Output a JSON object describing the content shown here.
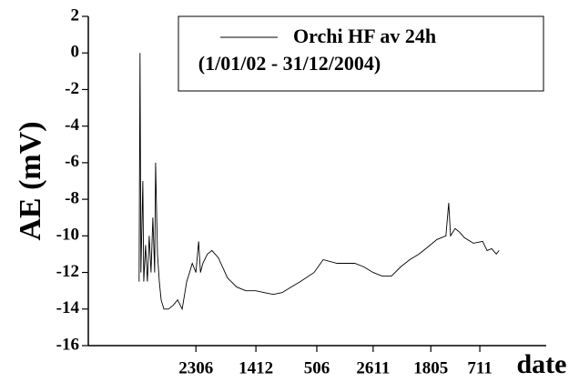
{
  "chart_data": {
    "type": "line",
    "subtitle": "(1/01/02 - 31/12/2004)",
    "x_label": "date",
    "y_label": "AE (mV)",
    "x": [
      111,
      113,
      115,
      119,
      121,
      125,
      129,
      133,
      137,
      141,
      145,
      147,
      151,
      155,
      159,
      165,
      175,
      185,
      195,
      205,
      215,
      221,
      227,
      235,
      241,
      245,
      250,
      260,
      270,
      284,
      304,
      324,
      344,
      366,
      384,
      404,
      423,
      443,
      463,
      493,
      513,
      543,
      582,
      602,
      622,
      642,
      662,
      682,
      702,
      722,
      742,
      761,
      781,
      787,
      791,
      801,
      811,
      821,
      841,
      861,
      871,
      881,
      891,
      897
    ],
    "series": [
      {
        "name": "Orchi HF av 24h",
        "color": "#000000",
        "values": [
          -12.5,
          0,
          -12,
          -7,
          -12.5,
          -10.5,
          -12.5,
          -10,
          -12,
          -9,
          -12,
          -6,
          -11,
          -12.5,
          -13.5,
          -14,
          -14,
          -13.8,
          -13.5,
          -14,
          -12.5,
          -12,
          -11.5,
          -12,
          -10.3,
          -12,
          -11.5,
          -11,
          -10.8,
          -11.2,
          -12.3,
          -12.8,
          -13,
          -13,
          -13.1,
          -13.2,
          -13.1,
          -12.8,
          -12.5,
          -12,
          -11.3,
          -11.5,
          -11.5,
          -11.7,
          -12,
          -12.2,
          -12.2,
          -11.7,
          -11.3,
          -11,
          -10.6,
          -10.2,
          -10,
          -8.2,
          -10,
          -9.6,
          -9.8,
          -10.1,
          -10.4,
          -10.3,
          -10.8,
          -10.7,
          -11,
          -10.8
        ]
      }
    ],
    "xlim": [
      0,
      1000
    ],
    "xticks": [
      {
        "value": 235,
        "label": "2306"
      },
      {
        "value": 366,
        "label": "1412"
      },
      {
        "value": 499,
        "label": "506"
      },
      {
        "value": 622,
        "label": "2611"
      },
      {
        "value": 748,
        "label": "1805"
      },
      {
        "value": 855,
        "label": "711"
      }
    ],
    "ylim": [
      -16,
      2
    ],
    "yticks": [
      -16,
      -14,
      -12,
      -10,
      -8,
      -6,
      -4,
      -2,
      0,
      2
    ],
    "grid": false
  }
}
